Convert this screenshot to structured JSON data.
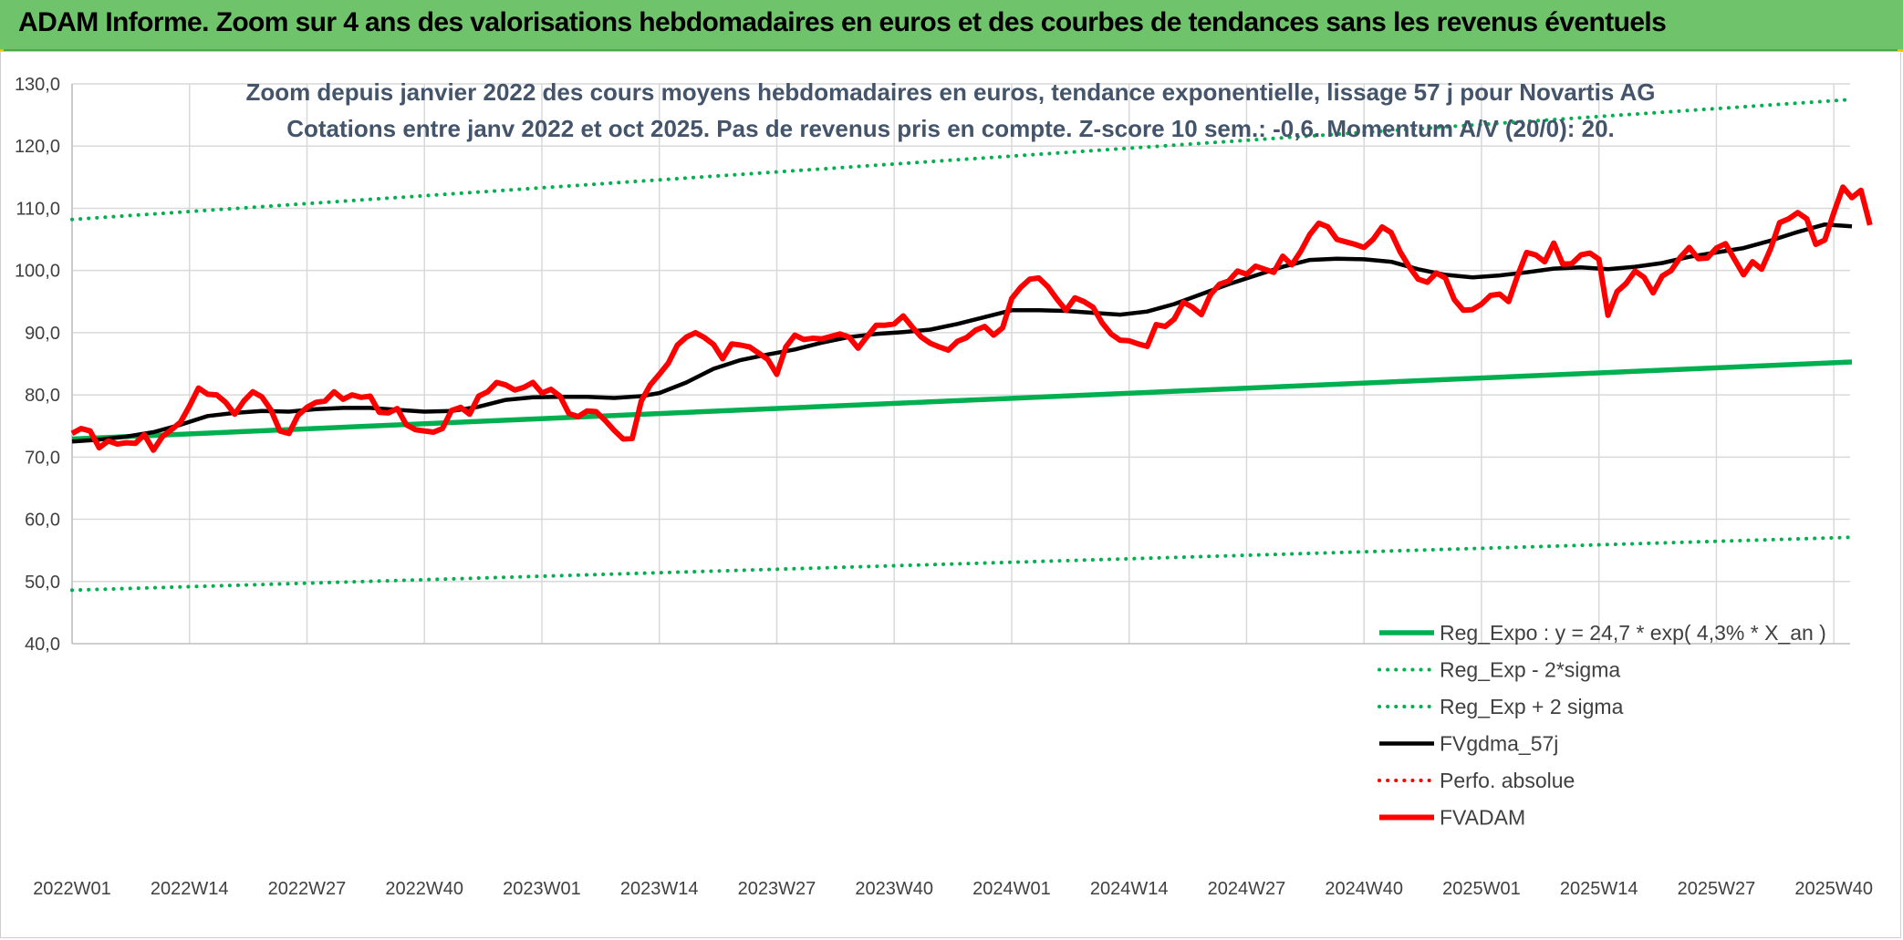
{
  "banner": {
    "title": "ADAM Informe. Zoom sur 4 ans des valorisations hebdomadaires en euros et des courbes de tendances sans les revenus éventuels"
  },
  "colors": {
    "banner_bg": "#6fc36b",
    "green": "#00b050",
    "black": "#000000",
    "red": "#ff0000",
    "title_text": "#44546a",
    "axis_text": "#404040",
    "grid": "#d9d9d9"
  },
  "chart_data": {
    "type": "line",
    "title": "Zoom depuis janvier 2022 des cours moyens hebdomadaires en euros, tendance exponentielle, lissage 57 j pour Novartis AG",
    "subtitle": "Cotations entre janv 2022 et oct 2025. Pas de revenus pris en compte. Z-score 10 sem.: -0,6. Momentum A/V (20/0): 20.",
    "ylim": [
      40,
      130
    ],
    "y_ticks": [
      "40,0",
      "50,0",
      "60,0",
      "70,0",
      "80,0",
      "90,0",
      "100,0",
      "110,0",
      "120,0",
      "130,0"
    ],
    "x_ticks": [
      "2022W01",
      "2022W14",
      "2022W27",
      "2022W40",
      "2023W01",
      "2023W14",
      "2023W27",
      "2023W40",
      "2024W01",
      "2024W14",
      "2024W27",
      "2024W40",
      "2025W01",
      "2025W14",
      "2025W27",
      "2025W40"
    ],
    "grid": true,
    "legend_position": "bottom-right",
    "series": [
      {
        "name": "Reg_Expo : y = 24,7 * exp( 4,3% *  X_an )",
        "style": "solid-thick",
        "color": "#00b050",
        "points": [
          [
            "2022W01",
            72.9
          ],
          [
            "2025W42",
            85.3
          ]
        ]
      },
      {
        "name": "Reg_Exp - 2*sigma",
        "style": "dotted",
        "color": "#00b050",
        "points": [
          [
            "2022W01",
            48.6
          ],
          [
            "2025W42",
            57.1
          ]
        ]
      },
      {
        "name": "Reg_Exp + 2 sigma",
        "style": "dotted",
        "color": "#00b050",
        "points": [
          [
            "2022W01",
            108.2
          ],
          [
            "2025W42",
            127.5
          ]
        ]
      },
      {
        "name": "FVgdma_57j",
        "style": "solid",
        "color": "#000000",
        "points": [
          [
            "2022W01",
            72.5
          ],
          [
            "2022W04",
            72.8
          ],
          [
            "2022W07",
            73.3
          ],
          [
            "2022W10",
            74.0
          ],
          [
            "2022W13",
            75.2
          ],
          [
            "2022W16",
            76.6
          ],
          [
            "2022W19",
            77.1
          ],
          [
            "2022W22",
            77.4
          ],
          [
            "2022W25",
            77.3
          ],
          [
            "2022W28",
            77.7
          ],
          [
            "2022W31",
            77.9
          ],
          [
            "2022W34",
            77.9
          ],
          [
            "2022W37",
            77.6
          ],
          [
            "2022W40",
            77.3
          ],
          [
            "2022W43",
            77.4
          ],
          [
            "2022W46",
            78.1
          ],
          [
            "2022W49",
            79.2
          ],
          [
            "2022W52",
            79.6
          ],
          [
            "2023W03",
            79.7
          ],
          [
            "2023W06",
            79.7
          ],
          [
            "2023W09",
            79.5
          ],
          [
            "2023W12",
            79.8
          ],
          [
            "2023W14",
            80.3
          ],
          [
            "2023W17",
            82.0
          ],
          [
            "2023W20",
            84.2
          ],
          [
            "2023W23",
            85.6
          ],
          [
            "2023W26",
            86.5
          ],
          [
            "2023W29",
            87.3
          ],
          [
            "2023W32",
            88.4
          ],
          [
            "2023W35",
            89.3
          ],
          [
            "2023W38",
            89.8
          ],
          [
            "2023W41",
            90.1
          ],
          [
            "2023W44",
            90.5
          ],
          [
            "2023W47",
            91.4
          ],
          [
            "2023W50",
            92.5
          ],
          [
            "2024W01",
            93.6
          ],
          [
            "2024W04",
            93.6
          ],
          [
            "2024W07",
            93.5
          ],
          [
            "2024W10",
            93.2
          ],
          [
            "2024W13",
            92.9
          ],
          [
            "2024W16",
            93.4
          ],
          [
            "2024W19",
            94.6
          ],
          [
            "2024W22",
            96.2
          ],
          [
            "2024W25",
            97.8
          ],
          [
            "2024W28",
            99.2
          ],
          [
            "2024W31",
            100.6
          ],
          [
            "2024W34",
            101.7
          ],
          [
            "2024W37",
            101.9
          ],
          [
            "2024W40",
            101.8
          ],
          [
            "2024W43",
            101.4
          ],
          [
            "2024W46",
            100.2
          ],
          [
            "2024W49",
            99.3
          ],
          [
            "2024W52",
            98.9
          ],
          [
            "2025W03",
            99.2
          ],
          [
            "2025W06",
            99.7
          ],
          [
            "2025W09",
            100.3
          ],
          [
            "2025W12",
            100.5
          ],
          [
            "2025W15",
            100.2
          ],
          [
            "2025W18",
            100.6
          ],
          [
            "2025W21",
            101.2
          ],
          [
            "2025W24",
            102.2
          ],
          [
            "2025W27",
            102.9
          ],
          [
            "2025W30",
            103.6
          ],
          [
            "2025W33",
            104.8
          ],
          [
            "2025W36",
            106.2
          ],
          [
            "2025W39",
            107.4
          ],
          [
            "2025W42",
            107.1
          ]
        ]
      },
      {
        "name": "Perfo. absolue",
        "style": "dotted",
        "color": "#ff0000",
        "points": []
      },
      {
        "name": "FVADAM",
        "style": "solid-thick",
        "color": "#ff0000",
        "points": [
          [
            "2022W01",
            73.8
          ],
          [
            "2022W02",
            74.6
          ],
          [
            "2022W03",
            74.2
          ],
          [
            "2022W04",
            71.5
          ],
          [
            "2022W05",
            72.6
          ],
          [
            "2022W06",
            72.1
          ],
          [
            "2022W07",
            72.3
          ],
          [
            "2022W08",
            72.2
          ],
          [
            "2022W09",
            73.6
          ],
          [
            "2022W10",
            71.1
          ],
          [
            "2022W11",
            73.3
          ],
          [
            "2022W12",
            74.4
          ],
          [
            "2022W13",
            75.6
          ],
          [
            "2022W14",
            78.2
          ],
          [
            "2022W15",
            81.1
          ],
          [
            "2022W16",
            80.1
          ],
          [
            "2022W17",
            80.0
          ],
          [
            "2022W18",
            78.8
          ],
          [
            "2022W19",
            76.9
          ],
          [
            "2022W20",
            79.0
          ],
          [
            "2022W21",
            80.5
          ],
          [
            "2022W22",
            79.7
          ],
          [
            "2022W23",
            77.6
          ],
          [
            "2022W24",
            74.2
          ],
          [
            "2022W25",
            73.8
          ],
          [
            "2022W26",
            76.7
          ],
          [
            "2022W27",
            78.0
          ],
          [
            "2022W28",
            78.8
          ],
          [
            "2022W29",
            79.0
          ],
          [
            "2022W30",
            80.5
          ],
          [
            "2022W31",
            79.3
          ],
          [
            "2022W32",
            80.0
          ],
          [
            "2022W33",
            79.6
          ],
          [
            "2022W34",
            79.8
          ],
          [
            "2022W35",
            77.2
          ],
          [
            "2022W36",
            77.1
          ],
          [
            "2022W37",
            77.8
          ],
          [
            "2022W38",
            75.2
          ],
          [
            "2022W39",
            74.4
          ],
          [
            "2022W40",
            74.2
          ],
          [
            "2022W41",
            74.0
          ],
          [
            "2022W42",
            74.6
          ],
          [
            "2022W43",
            77.5
          ],
          [
            "2022W44",
            78.0
          ],
          [
            "2022W45",
            76.9
          ],
          [
            "2022W46",
            79.8
          ],
          [
            "2022W47",
            80.5
          ],
          [
            "2022W48",
            82.0
          ],
          [
            "2022W49",
            81.6
          ],
          [
            "2022W50",
            80.8
          ],
          [
            "2022W51",
            81.2
          ],
          [
            "2022W52",
            82.0
          ],
          [
            "2023W01",
            80.3
          ],
          [
            "2023W02",
            80.9
          ],
          [
            "2023W03",
            79.8
          ],
          [
            "2023W04",
            77.0
          ],
          [
            "2023W05",
            76.5
          ],
          [
            "2023W06",
            77.4
          ],
          [
            "2023W07",
            77.3
          ],
          [
            "2023W08",
            75.9
          ],
          [
            "2023W09",
            74.3
          ],
          [
            "2023W10",
            72.9
          ],
          [
            "2023W11",
            73.0
          ],
          [
            "2023W12",
            79.0
          ],
          [
            "2023W13",
            81.6
          ],
          [
            "2023W14",
            83.3
          ],
          [
            "2023W15",
            85.1
          ],
          [
            "2023W16",
            88.0
          ],
          [
            "2023W17",
            89.3
          ],
          [
            "2023W18",
            90.0
          ],
          [
            "2023W19",
            89.2
          ],
          [
            "2023W20",
            88.1
          ],
          [
            "2023W21",
            85.8
          ],
          [
            "2023W22",
            88.2
          ],
          [
            "2023W23",
            88.0
          ],
          [
            "2023W24",
            87.7
          ],
          [
            "2023W25",
            86.7
          ],
          [
            "2023W26",
            85.7
          ],
          [
            "2023W27",
            83.3
          ],
          [
            "2023W28",
            87.7
          ],
          [
            "2023W29",
            89.6
          ],
          [
            "2023W30",
            88.9
          ],
          [
            "2023W31",
            89.1
          ],
          [
            "2023W32",
            89.0
          ],
          [
            "2023W33",
            89.4
          ],
          [
            "2023W34",
            89.8
          ],
          [
            "2023W35",
            89.3
          ],
          [
            "2023W36",
            87.5
          ],
          [
            "2023W37",
            89.4
          ],
          [
            "2023W38",
            91.2
          ],
          [
            "2023W39",
            91.2
          ],
          [
            "2023W40",
            91.4
          ],
          [
            "2023W41",
            92.7
          ],
          [
            "2023W42",
            90.9
          ],
          [
            "2023W43",
            89.3
          ],
          [
            "2023W44",
            88.3
          ],
          [
            "2023W45",
            87.7
          ],
          [
            "2023W46",
            87.2
          ],
          [
            "2023W47",
            88.6
          ],
          [
            "2023W48",
            89.2
          ],
          [
            "2023W49",
            90.4
          ],
          [
            "2023W50",
            91.0
          ],
          [
            "2023W51",
            89.6
          ],
          [
            "2023W52",
            90.8
          ],
          [
            "2024W01",
            95.5
          ],
          [
            "2024W02",
            97.3
          ],
          [
            "2024W03",
            98.6
          ],
          [
            "2024W04",
            98.8
          ],
          [
            "2024W05",
            97.4
          ],
          [
            "2024W06",
            95.4
          ],
          [
            "2024W07",
            93.6
          ],
          [
            "2024W08",
            95.6
          ],
          [
            "2024W09",
            95.0
          ],
          [
            "2024W10",
            94.1
          ],
          [
            "2024W11",
            91.6
          ],
          [
            "2024W12",
            89.8
          ],
          [
            "2024W13",
            88.8
          ],
          [
            "2024W14",
            88.7
          ],
          [
            "2024W15",
            88.2
          ],
          [
            "2024W16",
            87.8
          ],
          [
            "2024W17",
            91.3
          ],
          [
            "2024W18",
            91.0
          ],
          [
            "2024W19",
            92.2
          ],
          [
            "2024W20",
            94.9
          ],
          [
            "2024W21",
            94.1
          ],
          [
            "2024W22",
            92.9
          ],
          [
            "2024W23",
            96.1
          ],
          [
            "2024W24",
            97.8
          ],
          [
            "2024W25",
            98.3
          ],
          [
            "2024W26",
            99.9
          ],
          [
            "2024W27",
            99.4
          ],
          [
            "2024W28",
            100.7
          ],
          [
            "2024W29",
            100.2
          ],
          [
            "2024W30",
            99.7
          ],
          [
            "2024W31",
            102.3
          ],
          [
            "2024W32",
            100.9
          ],
          [
            "2024W33",
            103.1
          ],
          [
            "2024W34",
            105.8
          ],
          [
            "2024W35",
            107.6
          ],
          [
            "2024W36",
            107.0
          ],
          [
            "2024W37",
            105.0
          ],
          [
            "2024W38",
            104.6
          ],
          [
            "2024W39",
            104.2
          ],
          [
            "2024W40",
            103.7
          ],
          [
            "2024W41",
            105.0
          ],
          [
            "2024W42",
            107.0
          ],
          [
            "2024W43",
            106.1
          ],
          [
            "2024W44",
            103.0
          ],
          [
            "2024W45",
            100.6
          ],
          [
            "2024W46",
            98.6
          ],
          [
            "2024W47",
            98.1
          ],
          [
            "2024W48",
            99.6
          ],
          [
            "2024W49",
            98.8
          ],
          [
            "2024W50",
            95.3
          ],
          [
            "2024W51",
            93.6
          ],
          [
            "2024W52",
            93.7
          ],
          [
            "2025W01",
            94.6
          ],
          [
            "2025W02",
            96.0
          ],
          [
            "2025W03",
            96.2
          ],
          [
            "2025W04",
            95.0
          ],
          [
            "2025W05",
            99.2
          ],
          [
            "2025W06",
            102.9
          ],
          [
            "2025W07",
            102.5
          ],
          [
            "2025W08",
            101.4
          ],
          [
            "2025W09",
            104.4
          ],
          [
            "2025W10",
            101.0
          ],
          [
            "2025W11",
            101.1
          ],
          [
            "2025W12",
            102.5
          ],
          [
            "2025W13",
            102.8
          ],
          [
            "2025W14",
            101.8
          ],
          [
            "2025W15",
            92.8
          ],
          [
            "2025W16",
            96.6
          ],
          [
            "2025W17",
            97.9
          ],
          [
            "2025W18",
            99.9
          ],
          [
            "2025W19",
            98.9
          ],
          [
            "2025W20",
            96.4
          ],
          [
            "2025W21",
            99.1
          ],
          [
            "2025W22",
            100.0
          ],
          [
            "2025W23",
            102.1
          ],
          [
            "2025W24",
            103.7
          ],
          [
            "2025W25",
            101.9
          ],
          [
            "2025W26",
            102.0
          ],
          [
            "2025W27",
            103.6
          ],
          [
            "2025W28",
            104.3
          ],
          [
            "2025W29",
            101.8
          ],
          [
            "2025W30",
            99.3
          ],
          [
            "2025W31",
            101.4
          ],
          [
            "2025W32",
            100.2
          ],
          [
            "2025W33",
            103.5
          ],
          [
            "2025W34",
            107.7
          ],
          [
            "2025W35",
            108.3
          ],
          [
            "2025W36",
            109.3
          ],
          [
            "2025W37",
            108.3
          ],
          [
            "2025W38",
            104.2
          ],
          [
            "2025W39",
            104.9
          ],
          [
            "2025W40",
            109.3
          ],
          [
            "2025W41",
            113.4
          ],
          [
            "2025W42",
            111.7
          ],
          [
            "2025W43",
            112.9
          ],
          [
            "2025W44",
            107.3
          ]
        ]
      }
    ]
  }
}
